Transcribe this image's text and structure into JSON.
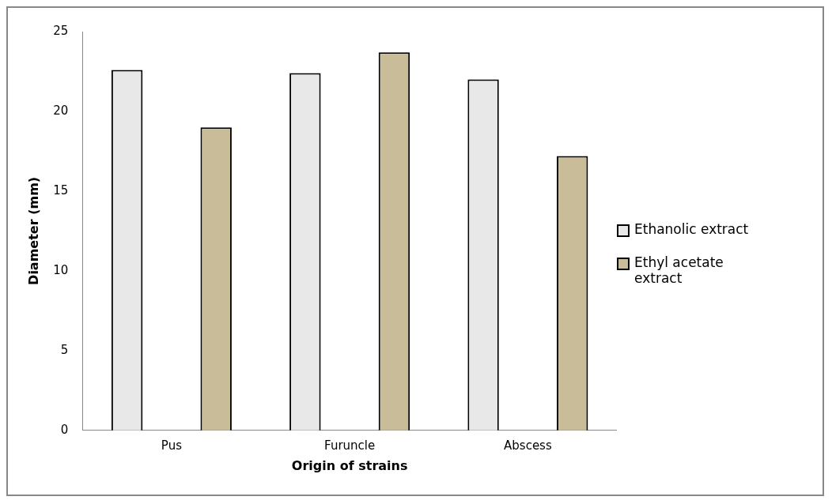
{
  "chart_data": {
    "type": "bar",
    "xlabel": "Origin of strains",
    "ylabel": "Diameter (mm)",
    "categories": [
      "Pus",
      "Furuncle",
      "Abscess"
    ],
    "series": [
      {
        "name": "Ethanolic extract",
        "color": "#e8e8e8",
        "values": [
          22.6,
          22.4,
          22.0
        ]
      },
      {
        "name": "Ethyl acetate extract",
        "color": "#c8bd98",
        "values": [
          19.0,
          23.7,
          17.2
        ]
      }
    ],
    "ylim": [
      0,
      25
    ],
    "yticks": [
      0,
      5,
      10,
      15,
      20,
      25
    ],
    "grid": false,
    "legend": "right"
  }
}
